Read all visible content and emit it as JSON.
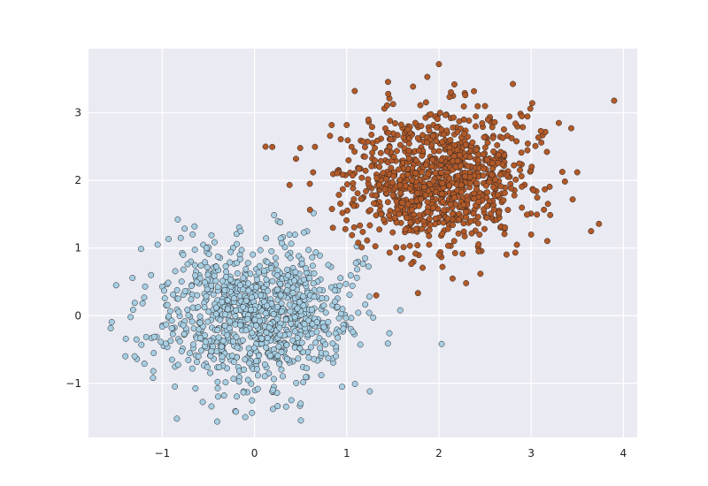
{
  "chart_data": {
    "type": "scatter",
    "title": "",
    "xlabel": "",
    "ylabel": "",
    "xlim": [
      -1.8,
      4.15
    ],
    "ylim": [
      -1.8,
      3.95
    ],
    "grid": true,
    "plot_background": "#eaeaf2",
    "grid_color": "#ffffff",
    "x_ticks": [
      -1,
      0,
      1,
      2,
      3,
      4
    ],
    "x_tick_labels": [
      "−1",
      "0",
      "1",
      "2",
      "3",
      "4"
    ],
    "y_ticks": [
      -1,
      0,
      1,
      2,
      3
    ],
    "y_tick_labels": [
      "−1",
      "0",
      "1",
      "2",
      "3"
    ],
    "series": [
      {
        "color": "#a6cee3",
        "edge_color": "#222222",
        "distribution": {
          "x_mean": 0.0,
          "y_mean": 0.0,
          "x_std": 0.5,
          "y_std": 0.5,
          "count": 1000
        },
        "points": [
          [
            -1.5,
            0.45
          ],
          [
            -1.4,
            -0.6
          ],
          [
            -1.05,
            1.05
          ],
          [
            -1.1,
            -0.92
          ],
          [
            -0.65,
            1.32
          ],
          [
            -0.2,
            -1.42
          ],
          [
            -0.4,
            -0.98
          ],
          [
            0.28,
            1.38
          ],
          [
            0.2,
            -1.38
          ],
          [
            1.25,
            -1.12
          ],
          [
            1.58,
            0.08
          ],
          [
            0.5,
            -1.3
          ],
          [
            -0.15,
            1.25
          ],
          [
            0.4,
            -1.25
          ],
          [
            0.95,
            -1.05
          ],
          [
            1.1,
            0.78
          ],
          [
            1.2,
            0.85
          ],
          [
            -1.3,
            -0.6
          ],
          [
            -0.8,
            1.15
          ],
          [
            0.8,
            0.75
          ],
          [
            -0.1,
            -1.5
          ]
        ]
      },
      {
        "color": "#b15928",
        "edge_color": "#222222",
        "distribution": {
          "x_mean": 2.0,
          "y_mean": 2.0,
          "x_std": 0.5,
          "y_std": 0.5,
          "count": 1000
        },
        "points": [
          [
            2.0,
            3.72
          ],
          [
            3.9,
            3.18
          ],
          [
            0.12,
            2.5
          ],
          [
            0.45,
            2.32
          ],
          [
            3.65,
            1.25
          ],
          [
            1.32,
            0.3
          ],
          [
            2.45,
            0.62
          ],
          [
            2.38,
            3.32
          ],
          [
            1.45,
            3.28
          ],
          [
            3.3,
            2.85
          ],
          [
            0.6,
            1.95
          ],
          [
            0.85,
            1.3
          ],
          [
            3.45,
            1.72
          ],
          [
            3.5,
            2.12
          ],
          [
            2.0,
            0.9
          ],
          [
            1.6,
            0.85
          ],
          [
            3.0,
            1.2
          ],
          [
            2.5,
            3.1
          ],
          [
            1.0,
            2.82
          ],
          [
            2.9,
            2.95
          ]
        ]
      }
    ]
  }
}
